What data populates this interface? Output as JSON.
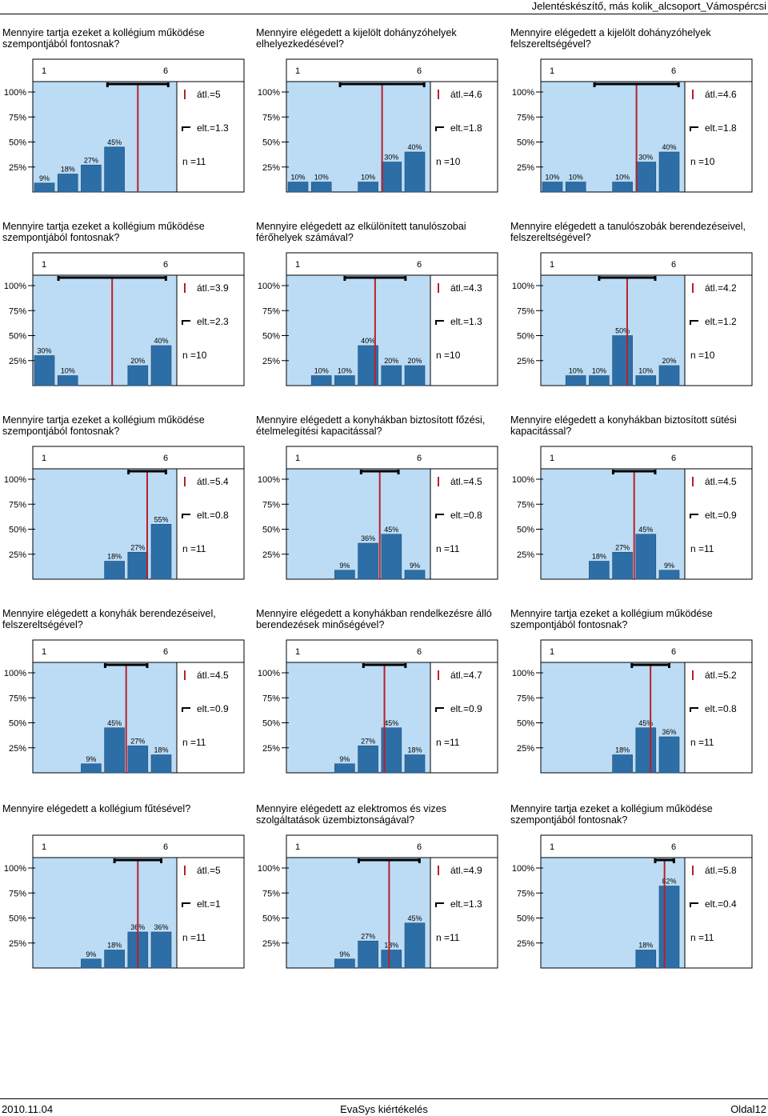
{
  "header": {
    "title": "Jelentéskészítő, más kolik_alcsoport_Vámospércsi"
  },
  "footer": {
    "date": "2010.11.04",
    "center": "EvaSys kiértékelés",
    "page": "Oldal12"
  },
  "colors": {
    "panel_bg": "#bcdcf5",
    "bar": "#2e6ea6",
    "mean_line": "#b8202a"
  },
  "chart_data": [
    {
      "type": "bar",
      "title": "Mennyire tartja ezeket a kollégium működése szempontjából fontosnak?",
      "scale_labels": [
        "1",
        "6"
      ],
      "y_labels": [
        "100%",
        "75%",
        "50%",
        "25%"
      ],
      "values": [
        9,
        18,
        27,
        45
      ],
      "value_labels": [
        "9%",
        "18%",
        "27%",
        "45%"
      ],
      "mean": 5,
      "std": 1.3,
      "mean_label": "átl.=5",
      "std_label": "elt.=1.3",
      "n_label": "n =11"
    },
    {
      "type": "bar",
      "title": "Mennyire elégedett a kijelölt dohányzóhelyek elhelyezkedésével?",
      "scale_labels": [
        "1",
        "6"
      ],
      "y_labels": [
        "100%",
        "75%",
        "50%",
        "25%"
      ],
      "values": [
        10,
        10,
        0,
        10,
        30,
        40
      ],
      "value_labels": [
        "10%",
        "10%",
        "",
        "10%",
        "30%",
        "40%"
      ],
      "mean": 4.6,
      "std": 1.8,
      "mean_label": "átl.=4.6",
      "std_label": "elt.=1.8",
      "n_label": "n =10"
    },
    {
      "type": "bar",
      "title": "Mennyire elégedett a kijelölt dohányzóhelyek felszereltségével?",
      "scale_labels": [
        "1",
        "6"
      ],
      "y_labels": [
        "100%",
        "75%",
        "50%",
        "25%"
      ],
      "values": [
        10,
        10,
        0,
        10,
        30,
        40
      ],
      "value_labels": [
        "10%",
        "10%",
        "",
        "10%",
        "30%",
        "40%"
      ],
      "mean": 4.6,
      "std": 1.8,
      "mean_label": "átl.=4.6",
      "std_label": "elt.=1.8",
      "n_label": "n =10"
    },
    {
      "type": "bar",
      "title": "Mennyire tartja ezeket a kollégium működése szempontjából fontosnak?",
      "scale_labels": [
        "1",
        "6"
      ],
      "y_labels": [
        "100%",
        "75%",
        "50%",
        "25%"
      ],
      "values": [
        30,
        10,
        0,
        0,
        20,
        40
      ],
      "value_labels": [
        "30%",
        "10%",
        "",
        "",
        "20%",
        "40%"
      ],
      "mean": 3.9,
      "std": 2.3,
      "mean_label": "átl.=3.9",
      "std_label": "elt.=2.3",
      "n_label": "n =10"
    },
    {
      "type": "bar",
      "title": "Mennyire elégedett az elkülönített tanulószobai férőhelyek számával?",
      "scale_labels": [
        "1",
        "6"
      ],
      "y_labels": [
        "100%",
        "75%",
        "50%",
        "25%"
      ],
      "values": [
        0,
        10,
        10,
        40,
        20,
        20
      ],
      "value_labels": [
        "",
        "10%",
        "10%",
        "40%",
        "20%",
        "20%"
      ],
      "mean": 4.3,
      "std": 1.3,
      "mean_label": "átl.=4.3",
      "std_label": "elt.=1.3",
      "n_label": "n =10"
    },
    {
      "type": "bar",
      "title": "Mennyire elégedett a tanulószobák berendezéseivel, felszereltségével?",
      "scale_labels": [
        "1",
        "6"
      ],
      "y_labels": [
        "100%",
        "75%",
        "50%",
        "25%"
      ],
      "values": [
        0,
        10,
        10,
        50,
        10,
        20
      ],
      "value_labels": [
        "",
        "10%",
        "10%",
        "50%",
        "10%",
        "20%"
      ],
      "mean": 4.2,
      "std": 1.2,
      "mean_label": "átl.=4.2",
      "std_label": "elt.=1.2",
      "n_label": "n =10"
    },
    {
      "type": "bar",
      "title": "Mennyire tartja ezeket a kollégium működése szempontjából fontosnak?",
      "scale_labels": [
        "1",
        "6"
      ],
      "y_labels": [
        "100%",
        "75%",
        "50%",
        "25%"
      ],
      "values": [
        0,
        0,
        0,
        18,
        27,
        55
      ],
      "value_labels": [
        "",
        "",
        "",
        "18%",
        "27%",
        "55%"
      ],
      "mean": 5.4,
      "std": 0.8,
      "mean_label": "átl.=5.4",
      "std_label": "elt.=0.8",
      "n_label": "n =11"
    },
    {
      "type": "bar",
      "title": "Mennyire elégedett a konyhákban biztosított főzési, ételmelegítési kapacitással?",
      "scale_labels": [
        "1",
        "6"
      ],
      "y_labels": [
        "100%",
        "75%",
        "50%",
        "25%"
      ],
      "values": [
        0,
        0,
        9,
        36,
        45,
        9
      ],
      "value_labels": [
        "",
        "",
        "9%",
        "36%",
        "45%",
        "9%"
      ],
      "mean": 4.5,
      "std": 0.8,
      "mean_label": "átl.=4.5",
      "std_label": "elt.=0.8",
      "n_label": "n =11"
    },
    {
      "type": "bar",
      "title": "Mennyire elégedett a konyhákban biztosított sütési kapacitással?",
      "scale_labels": [
        "1",
        "6"
      ],
      "y_labels": [
        "100%",
        "75%",
        "50%",
        "25%"
      ],
      "values": [
        0,
        0,
        18,
        27,
        45,
        9
      ],
      "value_labels": [
        "",
        "",
        "18%",
        "27%",
        "45%",
        "9%"
      ],
      "mean": 4.5,
      "std": 0.9,
      "mean_label": "átl.=4.5",
      "std_label": "elt.=0.9",
      "n_label": "n =11"
    },
    {
      "type": "bar",
      "title": "Mennyire elégedett a konyhák berendezéseivel, felszereltségével?",
      "scale_labels": [
        "1",
        "6"
      ],
      "y_labels": [
        "100%",
        "75%",
        "50%",
        "25%"
      ],
      "values": [
        0,
        0,
        9,
        45,
        27,
        18
      ],
      "value_labels": [
        "",
        "",
        "9%",
        "45%",
        "27%",
        "18%"
      ],
      "mean": 4.5,
      "std": 0.9,
      "mean_label": "átl.=4.5",
      "std_label": "elt.=0.9",
      "n_label": "n =11"
    },
    {
      "type": "bar",
      "title": "Mennyire elégedett a konyhákban rendelkezésre álló berendezések minőségével?",
      "scale_labels": [
        "1",
        "6"
      ],
      "y_labels": [
        "100%",
        "75%",
        "50%",
        "25%"
      ],
      "values": [
        0,
        0,
        9,
        27,
        45,
        18
      ],
      "value_labels": [
        "",
        "",
        "9%",
        "27%",
        "45%",
        "18%"
      ],
      "mean": 4.7,
      "std": 0.9,
      "mean_label": "átl.=4.7",
      "std_label": "elt.=0.9",
      "n_label": "n =11"
    },
    {
      "type": "bar",
      "title": "Mennyire tartja ezeket a kollégium működése szempontjából fontosnak?",
      "scale_labels": [
        "1",
        "6"
      ],
      "y_labels": [
        "100%",
        "75%",
        "50%",
        "25%"
      ],
      "values": [
        0,
        0,
        0,
        18,
        45,
        36
      ],
      "value_labels": [
        "",
        "",
        "",
        "18%",
        "45%",
        "36%"
      ],
      "mean": 5.2,
      "std": 0.8,
      "mean_label": "átl.=5.2",
      "std_label": "elt.=0.8",
      "n_label": "n =11"
    },
    {
      "type": "bar",
      "title": "Mennyire elégedett a kollégium fűtésével?",
      "scale_labels": [
        "1",
        "6"
      ],
      "y_labels": [
        "100%",
        "75%",
        "50%",
        "25%"
      ],
      "values": [
        0,
        0,
        9,
        18,
        36,
        36
      ],
      "value_labels": [
        "",
        "",
        "9%",
        "18%",
        "36%",
        "36%"
      ],
      "mean": 5,
      "std": 1,
      "mean_label": "átl.=5",
      "std_label": "elt.=1",
      "n_label": "n =11"
    },
    {
      "type": "bar",
      "title": "Mennyire elégedett az elektromos és vizes szolgáltatások üzembiztonságával?",
      "scale_labels": [
        "1",
        "6"
      ],
      "y_labels": [
        "100%",
        "75%",
        "50%",
        "25%"
      ],
      "values": [
        0,
        0,
        9,
        27,
        18,
        45
      ],
      "value_labels": [
        "",
        "",
        "9%",
        "27%",
        "18%",
        "45%"
      ],
      "mean": 4.9,
      "std": 1.3,
      "mean_label": "átl.=4.9",
      "std_label": "elt.=1.3",
      "n_label": "n =11"
    },
    {
      "type": "bar",
      "title": "Mennyire tartja ezeket a kollégium működése szempontjából fontosnak?",
      "scale_labels": [
        "1",
        "6"
      ],
      "y_labels": [
        "100%",
        "75%",
        "50%",
        "25%"
      ],
      "values": [
        0,
        0,
        0,
        0,
        18,
        82
      ],
      "value_labels": [
        "",
        "",
        "",
        "",
        "18%",
        "82%"
      ],
      "mean": 5.8,
      "std": 0.4,
      "mean_label": "átl.=5.8",
      "std_label": "elt.=0.4",
      "n_label": "n =11"
    }
  ]
}
